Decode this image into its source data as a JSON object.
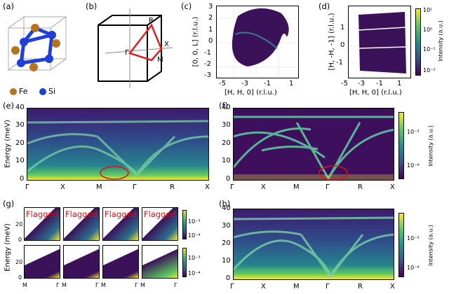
{
  "panels": {
    "a": {
      "label": "(a)",
      "legend": [
        {
          "name": "Fe",
          "color": "#b8731f"
        },
        {
          "name": "Si",
          "color": "#1f3fd6"
        }
      ]
    },
    "b": {
      "label": "(b)",
      "points": [
        "R",
        "X",
        "Γ",
        "M"
      ]
    },
    "c": {
      "label": "(c)",
      "xlabel": "[H, H, 0] (r.l.u.)",
      "ylabel": "[0, 0, L] (r.l.u.)",
      "xticks": [
        "-5",
        "-3",
        "-1",
        "1"
      ],
      "yticks": [
        "3",
        "2",
        "1",
        "0",
        "-1",
        "-2",
        "-3"
      ]
    },
    "d": {
      "label": "(d)",
      "xlabel": "[H, H, 0] (r.l.u.)",
      "ylabel": "[H, -H, -1] (r.l.u.)",
      "xticks": [
        "-5",
        "-3",
        "-1",
        "1"
      ],
      "yticks": [
        "1",
        "0",
        "-1"
      ],
      "cbar_label": "Intensity (a.u.)",
      "cbar_ticks": [
        "10¹",
        "10⁰",
        "10⁻¹",
        "10⁻²"
      ]
    },
    "e": {
      "label": "(e)",
      "ylabel": "Energy (meV)",
      "yticks": [
        "40",
        "30",
        "20",
        "10",
        "0"
      ],
      "xticks": [
        "Γ",
        "X",
        "M",
        "Γ",
        "R",
        "X"
      ]
    },
    "f": {
      "label": "(f)",
      "yticks": [
        "40",
        "30",
        "20",
        "10",
        "0"
      ],
      "xticks": [
        "Γ",
        "X",
        "M",
        "Γ",
        "R",
        "X"
      ],
      "cbar_label": "Intensity (a.u.)",
      "cbar_ticks": [
        "10⁻³",
        "10⁻⁴"
      ]
    },
    "g": {
      "label": "(g)",
      "ylabel": "Energy (meV)",
      "flag_text": "Flagged",
      "yticks_top": [
        "20",
        "0"
      ],
      "yticks_bottom": [
        "20",
        "0"
      ],
      "xticks": [
        "M",
        "Γ",
        "M",
        "Γ",
        "M",
        "Γ",
        "M",
        "Γ"
      ],
      "cbar_ticks": [
        "10⁻³",
        "10⁻⁴"
      ]
    },
    "h": {
      "label": "(h)",
      "yticks": [
        "40",
        "30",
        "20",
        "10",
        "0"
      ],
      "xticks": [
        "Γ",
        "X",
        "M",
        "Γ",
        "R",
        "X"
      ],
      "cbar_label": "Intensity (a.u.)",
      "cbar_ticks": [
        "10⁻³",
        "10⁻⁴"
      ]
    }
  }
}
